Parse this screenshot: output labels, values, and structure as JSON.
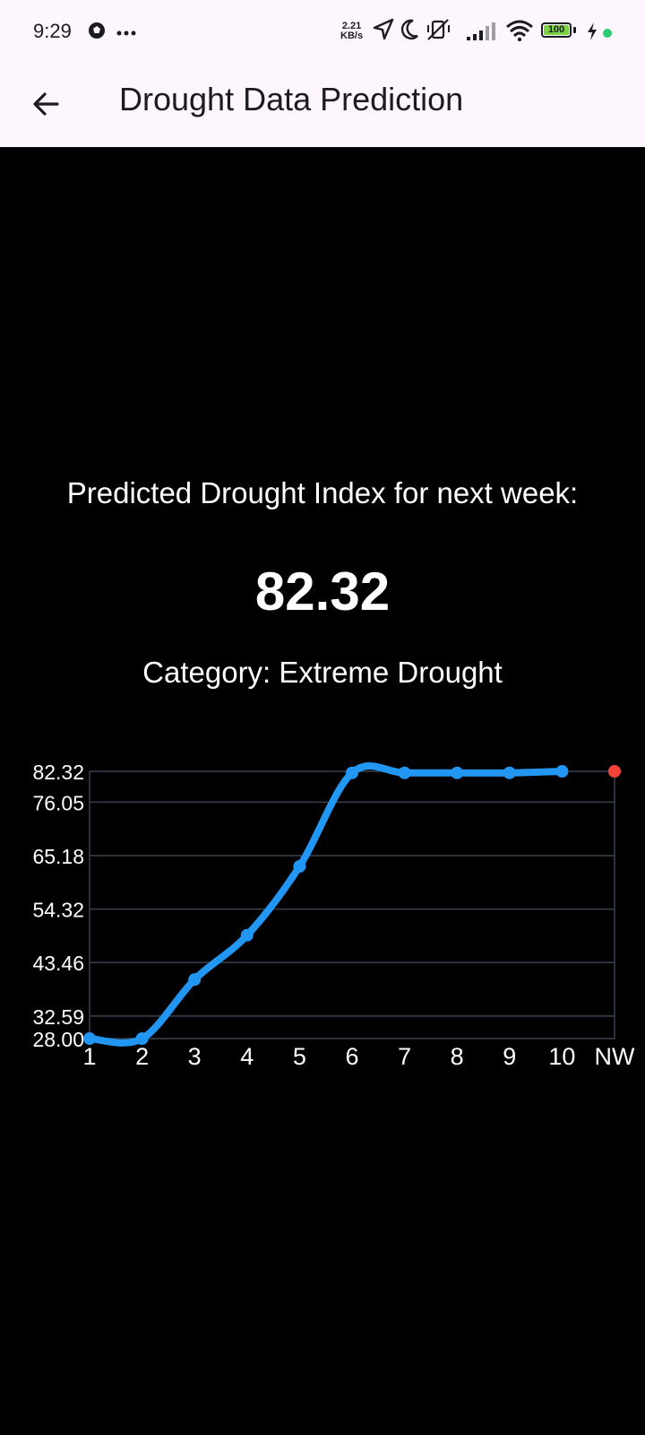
{
  "status_bar": {
    "time": "9:29",
    "net_speed_value": "2.21",
    "net_speed_unit": "KB/s",
    "battery_level": "100",
    "icons": [
      "football-icon",
      "more-dots-icon",
      "location-arrow-icon",
      "moon-icon",
      "vibrate-off-icon",
      "signal-icon",
      "wifi-icon",
      "battery-icon",
      "charging-bolt-icon",
      "green-dot-icon"
    ]
  },
  "app_bar": {
    "title": "Drought Data Prediction",
    "back_icon": "arrow-left-icon"
  },
  "prediction": {
    "label": "Predicted Drought Index for next week:",
    "value": "82.32",
    "category": "Category: Extreme Drought"
  },
  "colors": {
    "background": "#000000",
    "appbar": "#fdf6ff",
    "line": "#2196f3",
    "prediction_point": "#f44336",
    "grid": "#3a4250"
  },
  "chart_data": {
    "type": "line",
    "categories": [
      "1",
      "2",
      "3",
      "4",
      "5",
      "6",
      "7",
      "8",
      "9",
      "10",
      "NW"
    ],
    "series": [
      {
        "values": [
          28.0,
          28.0,
          40.0,
          49.0,
          63.0,
          82.0,
          82.0,
          82.0,
          82.0,
          82.32,
          null
        ]
      }
    ],
    "prediction": {
      "category": "NW",
      "value": 82.32
    },
    "yticks": [
      "28.00",
      "32.59",
      "43.46",
      "54.32",
      "65.18",
      "76.05",
      "82.32"
    ],
    "ylim": [
      28.0,
      82.32
    ],
    "grid": true,
    "title": "",
    "xlabel": "",
    "ylabel": ""
  }
}
